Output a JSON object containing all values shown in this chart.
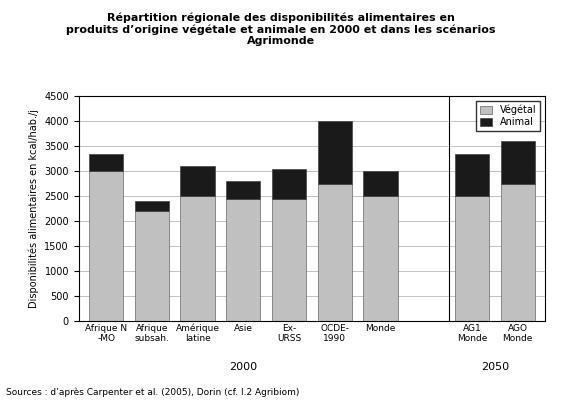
{
  "title": "Répartition régionale des disponibilités alimentaires en\nproduits d’origine végétale et animale en 2000 et dans les scénarios\nAgrimonde",
  "ylabel": "Disponibilités alimentaires en kcal/hab./j",
  "categories": [
    "Afrique N\n-MO",
    "Afrique\nsubsah.",
    "Amérique\nlatine",
    "Asie",
    "Ex-\nURSS",
    "OCDE-\n1990",
    "Monde",
    "AG1\nMonde",
    "AGO\nMonde"
  ],
  "vegetal": [
    3000,
    2200,
    2500,
    2450,
    2450,
    2750,
    2500,
    2500,
    2750
  ],
  "animal": [
    350,
    200,
    600,
    350,
    600,
    1250,
    500,
    850,
    850
  ],
  "bar_color_vegetal": "#c0c0c0",
  "bar_color_animal": "#1a1a1a",
  "ylim": [
    0,
    4500
  ],
  "yticks": [
    0,
    500,
    1000,
    1500,
    2000,
    2500,
    3000,
    3500,
    4000,
    4500
  ],
  "source": "Sources : d’après Carpenter et al. (2005), Dorin (cf. I.2 Agribiom)",
  "legend_vegetal": "Végétal",
  "legend_animal": "Animal",
  "group_labels": [
    "2000",
    "2050"
  ],
  "bar_width": 0.75,
  "background_color": "#ffffff"
}
